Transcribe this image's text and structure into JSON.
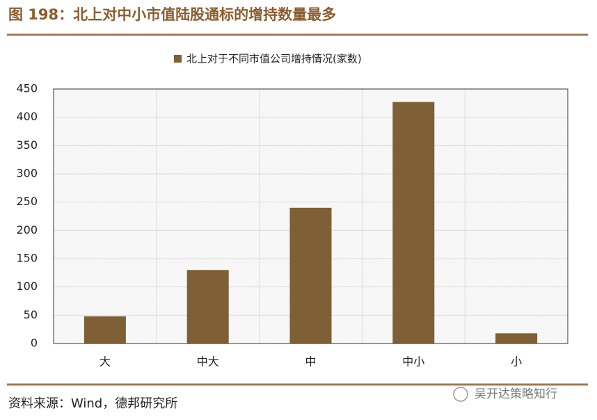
{
  "chart_data": {
    "type": "bar",
    "title": "图 198：北上对中小市值陆股通标的增持数量最多",
    "categories": [
      "大",
      "中大",
      "中",
      "中小",
      "小"
    ],
    "series": [
      {
        "name": "北上对于不同市值公司增持情况(家数)",
        "color": "#7f5f35",
        "values": [
          48,
          130,
          240,
          427,
          18
        ]
      }
    ],
    "ylim": [
      0,
      450
    ],
    "yticks": [
      0,
      50,
      100,
      150,
      200,
      250,
      300,
      350,
      400,
      450
    ],
    "grid": true,
    "source": "资料来源：Wind，德邦研究所",
    "watermark": "吴开达策略知行"
  }
}
